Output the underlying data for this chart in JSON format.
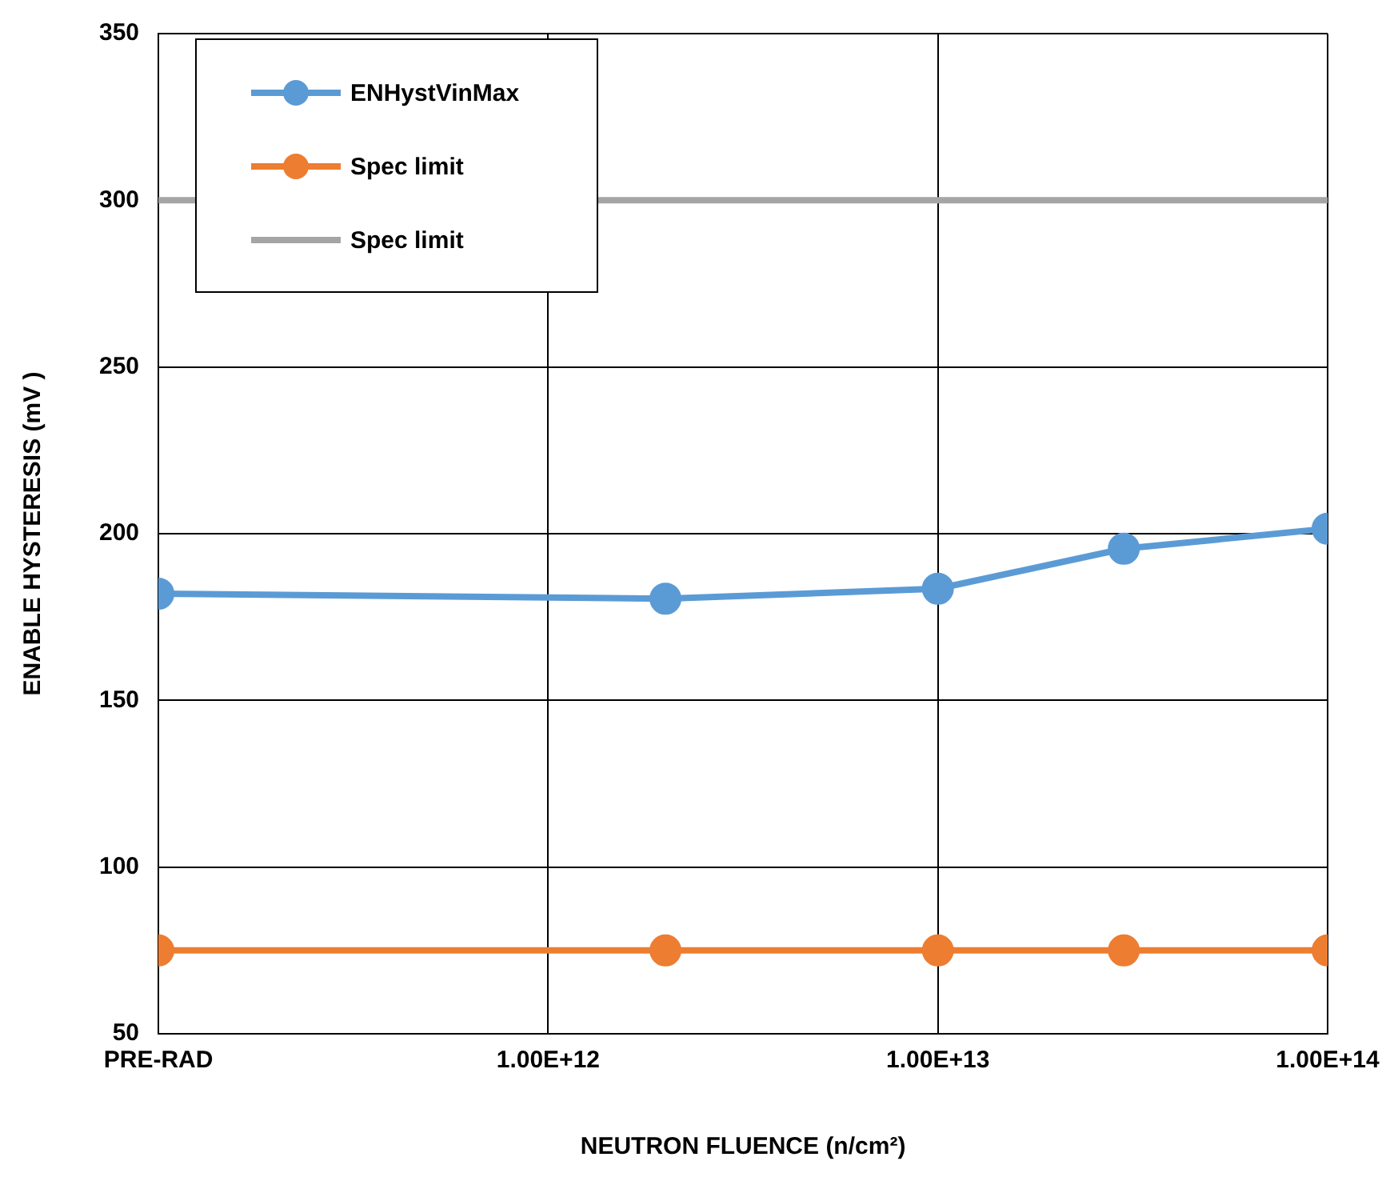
{
  "chart_data": {
    "type": "line",
    "xlabel": "NEUTRON FLUENCE (n/cm²)",
    "ylabel": "ENABLE HYSTERESIS (mV )",
    "log": "x",
    "xlim": [
      100000000000,
      100000000000000
    ],
    "xticks": [
      {
        "value": 100000000000,
        "label": "PRE-RAD"
      },
      {
        "value": 1000000000000,
        "label": "1.00E+12"
      },
      {
        "value": 10000000000000,
        "label": "1.00E+13"
      },
      {
        "value": 100000000000000,
        "label": "1.00E+14"
      }
    ],
    "ylim": [
      50,
      350
    ],
    "yticks": [
      50,
      100,
      150,
      200,
      250,
      300,
      350
    ],
    "grid": true,
    "legend": "top left",
    "line_style": "solid",
    "series": [
      {
        "name": "ENHystVinMax",
        "color": "#5b9bd5",
        "marker": "circle",
        "x": [
          100000000000,
          2000000000000,
          10000000000000,
          30000000000000,
          100000000000000
        ],
        "values": [
          182,
          180.5,
          183.5,
          195.5,
          201.5
        ]
      },
      {
        "name": "Spec limit",
        "color": "#ed7d31",
        "marker": "circle",
        "x": [
          100000000000,
          2000000000000,
          10000000000000,
          30000000000000,
          100000000000000
        ],
        "values": [
          75,
          75,
          75,
          75,
          75
        ]
      },
      {
        "name": "Spec limit",
        "color": "#a5a5a5",
        "marker": "none",
        "x": [
          100000000000,
          100000000000000
        ],
        "values": [
          300,
          300
        ]
      }
    ]
  }
}
